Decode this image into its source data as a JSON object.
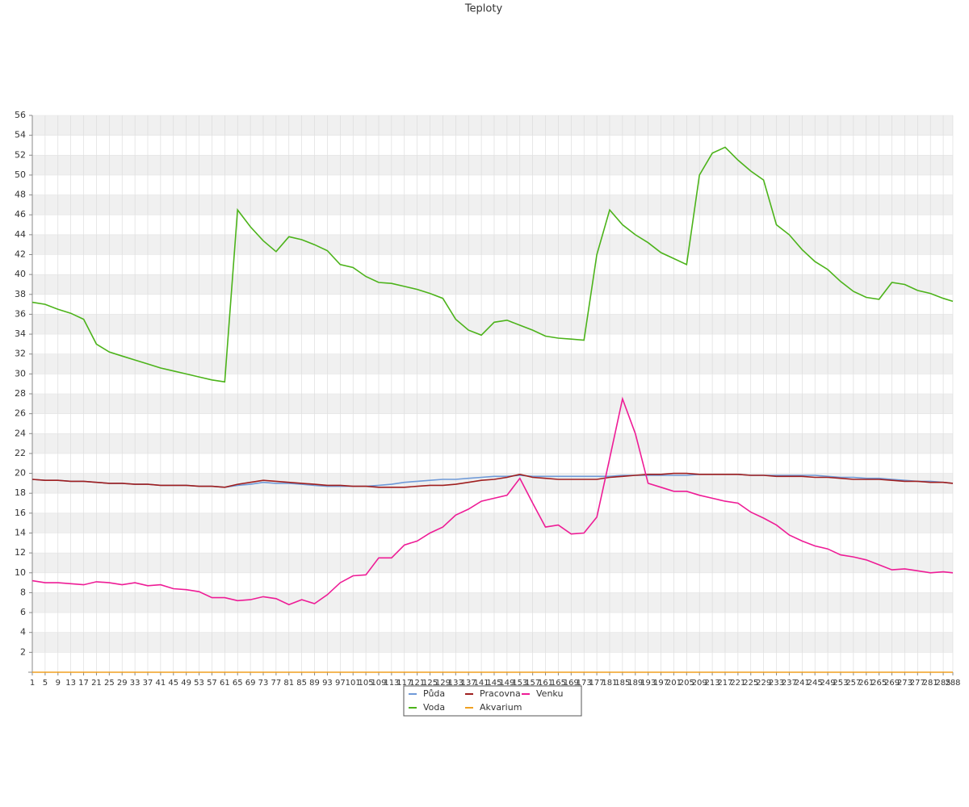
{
  "chart_data": {
    "type": "line",
    "title": "Teploty",
    "x": [
      1,
      5,
      9,
      13,
      17,
      21,
      25,
      29,
      33,
      37,
      41,
      45,
      49,
      53,
      57,
      61,
      65,
      69,
      73,
      77,
      81,
      85,
      89,
      93,
      97,
      101,
      105,
      109,
      113,
      117,
      121,
      125,
      129,
      133,
      137,
      141,
      145,
      149,
      153,
      157,
      161,
      165,
      169,
      173,
      177,
      181,
      185,
      189,
      193,
      197,
      201,
      205,
      209,
      213,
      217,
      221,
      225,
      229,
      233,
      237,
      241,
      245,
      249,
      253,
      257,
      261,
      265,
      269,
      273,
      277,
      281,
      285,
      288
    ],
    "xlim": [
      1,
      288
    ],
    "xticks": [
      1,
      5,
      9,
      13,
      17,
      21,
      25,
      29,
      33,
      37,
      41,
      45,
      49,
      53,
      57,
      61,
      65,
      69,
      73,
      77,
      81,
      85,
      89,
      93,
      97,
      101,
      105,
      109,
      113,
      117,
      121,
      125,
      129,
      133,
      137,
      141,
      145,
      149,
      153,
      157,
      161,
      165,
      169,
      173,
      177,
      181,
      185,
      189,
      193,
      197,
      201,
      205,
      209,
      213,
      217,
      221,
      225,
      229,
      233,
      237,
      241,
      245,
      249,
      253,
      257,
      261,
      265,
      269,
      273,
      277,
      281,
      285,
      288
    ],
    "ylim": [
      0,
      56
    ],
    "yticks": [
      2,
      4,
      6,
      8,
      10,
      12,
      14,
      16,
      18,
      20,
      22,
      24,
      26,
      28,
      30,
      32,
      34,
      36,
      38,
      40,
      42,
      44,
      46,
      48,
      50,
      52,
      54,
      56
    ],
    "grid": true,
    "legend": "bottom",
    "series": [
      {
        "name": "Půda",
        "color": "#6f9ad8",
        "values": [
          19.4,
          19.3,
          19.3,
          19.2,
          19.2,
          19.1,
          19.0,
          19.0,
          18.9,
          18.9,
          18.8,
          18.8,
          18.8,
          18.7,
          18.7,
          18.6,
          18.8,
          18.9,
          19.1,
          19.0,
          19.0,
          18.9,
          18.8,
          18.7,
          18.7,
          18.7,
          18.7,
          18.8,
          18.9,
          19.1,
          19.2,
          19.3,
          19.4,
          19.4,
          19.5,
          19.6,
          19.7,
          19.7,
          19.8,
          19.7,
          19.7,
          19.7,
          19.7,
          19.7,
          19.7,
          19.7,
          19.8,
          19.8,
          19.8,
          19.8,
          19.8,
          19.8,
          19.9,
          19.9,
          19.9,
          19.9,
          19.8,
          19.8,
          19.8,
          19.8,
          19.8,
          19.8,
          19.7,
          19.6,
          19.6,
          19.5,
          19.5,
          19.4,
          19.3,
          19.2,
          19.2,
          19.1,
          19.0
        ]
      },
      {
        "name": "Voda",
        "color": "#4cb31a",
        "values": [
          37.2,
          37.0,
          36.5,
          36.1,
          35.5,
          33.0,
          32.2,
          31.8,
          31.4,
          31.0,
          30.6,
          30.3,
          30.0,
          29.7,
          29.4,
          29.2,
          46.5,
          44.8,
          43.4,
          42.3,
          43.8,
          43.5,
          43.0,
          42.4,
          41.0,
          40.7,
          39.8,
          39.2,
          39.1,
          38.8,
          38.5,
          38.1,
          37.6,
          35.5,
          34.4,
          33.9,
          35.2,
          35.4,
          34.9,
          34.4,
          33.8,
          33.6,
          33.5,
          33.4,
          42.0,
          46.5,
          45.0,
          44.0,
          43.2,
          42.2,
          41.6,
          41.0,
          50.0,
          52.2,
          52.8,
          51.5,
          50.4,
          49.5,
          45.0,
          44.0,
          42.5,
          41.3,
          40.5,
          39.3,
          38.3,
          37.7,
          37.5,
          39.2,
          39.0,
          38.4,
          38.1,
          37.6,
          37.3
        ]
      },
      {
        "name": "Pracovna",
        "color": "#a01f1f",
        "values": [
          19.4,
          19.3,
          19.3,
          19.2,
          19.2,
          19.1,
          19.0,
          19.0,
          18.9,
          18.9,
          18.8,
          18.8,
          18.8,
          18.7,
          18.7,
          18.6,
          18.9,
          19.1,
          19.3,
          19.2,
          19.1,
          19.0,
          18.9,
          18.8,
          18.8,
          18.7,
          18.7,
          18.6,
          18.6,
          18.6,
          18.7,
          18.8,
          18.8,
          18.9,
          19.1,
          19.3,
          19.4,
          19.6,
          19.9,
          19.6,
          19.5,
          19.4,
          19.4,
          19.4,
          19.4,
          19.6,
          19.7,
          19.8,
          19.9,
          19.9,
          20.0,
          20.0,
          19.9,
          19.9,
          19.9,
          19.9,
          19.8,
          19.8,
          19.7,
          19.7,
          19.7,
          19.6,
          19.6,
          19.5,
          19.4,
          19.4,
          19.4,
          19.3,
          19.2,
          19.2,
          19.1,
          19.1,
          19.0
        ]
      },
      {
        "name": "Akvarium",
        "color": "#f0a020",
        "values": [
          0,
          0,
          0,
          0,
          0,
          0,
          0,
          0,
          0,
          0,
          0,
          0,
          0,
          0,
          0,
          0,
          0,
          0,
          0,
          0,
          0,
          0,
          0,
          0,
          0,
          0,
          0,
          0,
          0,
          0,
          0,
          0,
          0,
          0,
          0,
          0,
          0,
          0,
          0,
          0,
          0,
          0,
          0,
          0,
          0,
          0,
          0,
          0,
          0,
          0,
          0,
          0,
          0,
          0,
          0,
          0,
          0,
          0,
          0,
          0,
          0,
          0,
          0,
          0,
          0,
          0,
          0,
          0,
          0,
          0,
          0,
          0,
          0
        ]
      },
      {
        "name": "Venku",
        "color": "#ee1c96",
        "values": [
          9.2,
          9.0,
          9.0,
          8.9,
          8.8,
          9.1,
          9.0,
          8.8,
          9.0,
          8.7,
          8.8,
          8.4,
          8.3,
          8.1,
          7.5,
          7.5,
          7.2,
          7.3,
          7.6,
          7.4,
          6.8,
          7.3,
          6.9,
          7.8,
          9.0,
          9.7,
          9.8,
          11.5,
          11.5,
          12.8,
          13.2,
          14.0,
          14.6,
          15.8,
          16.4,
          17.2,
          17.5,
          17.8,
          19.5,
          17.0,
          14.6,
          14.8,
          13.9,
          14.0,
          15.6,
          21.5,
          27.5,
          24.0,
          19.0,
          18.6,
          18.2,
          18.2,
          17.8,
          17.5,
          17.2,
          17.0,
          16.1,
          15.5,
          14.8,
          13.8,
          13.2,
          12.7,
          12.4,
          11.8,
          11.6,
          11.3,
          10.8,
          10.3,
          10.4,
          10.2,
          10.0,
          10.1,
          10.0
        ]
      }
    ]
  }
}
